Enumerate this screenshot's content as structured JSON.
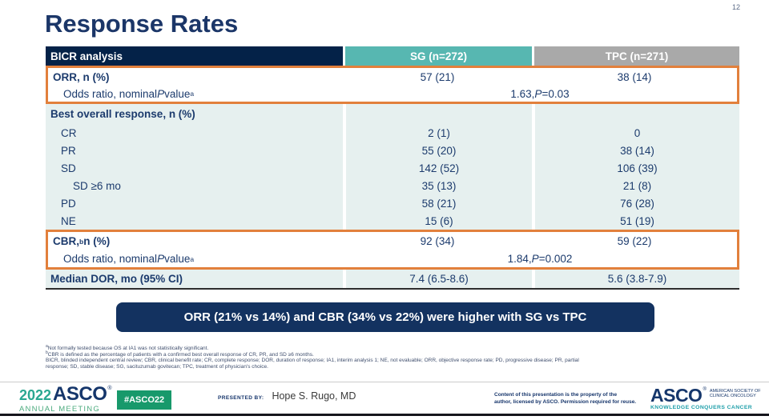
{
  "page": {
    "number": "12",
    "title": "Response Rates"
  },
  "colors": {
    "navy_header": "#042248",
    "teal_header": "#57b7b1",
    "gray_header": "#a9a9a9",
    "row_blue": "#e6f0ef",
    "orange_highlight": "#e2803c",
    "summary_navy": "#133260",
    "title_navy": "#1b3668",
    "badge_green": "#18996b",
    "tagline_teal": "#1f9faa"
  },
  "table": {
    "header": [
      "BICR analysis",
      "SG (n=272)",
      "TPC (n=271)"
    ],
    "orr": {
      "label": "ORR, n (%)",
      "sg": "57 (21)",
      "tpc": "38 (14)"
    },
    "orr_odds": {
      "label_pre": "Odds ratio, nominal ",
      "label_p": "P",
      "label_post": " value",
      "label_sup": "a",
      "value_pre": "1.63, ",
      "value_p": "P",
      "value_post": "=0.03"
    },
    "bor_label": "Best overall response, n (%)",
    "bor_rows": [
      {
        "label": "CR",
        "sg": "2 (1)",
        "tpc": "0"
      },
      {
        "label": "PR",
        "sg": "55 (20)",
        "tpc": "38 (14)"
      },
      {
        "label": "SD",
        "sg": "142 (52)",
        "tpc": "106 (39)"
      },
      {
        "label": "SD ≥6 mo",
        "sg": "35 (13)",
        "tpc": "21 (8)"
      },
      {
        "label": "PD",
        "sg": "58 (21)",
        "tpc": "76 (28)"
      },
      {
        "label": "NE",
        "sg": "15 (6)",
        "tpc": "51 (19)"
      }
    ],
    "cbr": {
      "label_pre": "CBR,",
      "label_sup": "b",
      "label_post": " n (%)",
      "sg": "92 (34)",
      "tpc": "59 (22)"
    },
    "cbr_odds": {
      "label_pre": "Odds ratio, nominal ",
      "label_p": "P",
      "label_post": " value",
      "label_sup": "a",
      "value_pre": "1.84, ",
      "value_p": "P",
      "value_post": "=0.002"
    },
    "dor": {
      "label": "Median DOR, mo (95% CI)",
      "sg": "7.4 (6.5-8.6)",
      "tpc": "5.6 (3.8-7.9)"
    }
  },
  "summary": "ORR (21% vs 14%) and CBR (34% vs 22%) were higher with SG vs TPC",
  "footnotes": [
    {
      "sup": "a",
      "text": "Not formally tested because OS at IA1 was not statistically significant."
    },
    {
      "sup": "b",
      "text": "CBR is defined as the percentage of patients with a confirmed best overall response of CR, PR, and SD ≥6 months."
    },
    {
      "sup": "",
      "text": "BICR, blinded independent central review; CBR, clinical benefit rate; CR, complete response; DOR, duration of response; IA1, interim analysis 1; NE, not evaluable; ORR, objective response rate; PD, progressive disease; PR, partial"
    },
    {
      "sup": "",
      "text": "response; SD, stable disease; SG, sacituzumab govitecan; TPC, treatment of physician's choice."
    }
  ],
  "footer": {
    "meeting_year": "2022",
    "meeting_name": "ASCO",
    "meeting_reg": "®",
    "meeting_sub": "ANNUAL MEETING",
    "hashtag": "#ASCO22",
    "presented_label": "PRESENTED BY:",
    "presenter": "Hope S. Rugo, MD",
    "copyright_line1": "Content of this presentation is the property of the",
    "copyright_line2": "author, licensed by ASCO. Permission required for reuse.",
    "logo_word": "ASCO",
    "logo_reg": "®",
    "society_line1": "AMERICAN SOCIETY OF",
    "society_line2": "CLINICAL ONCOLOGY",
    "logo_tagline": "KNOWLEDGE CONQUERS CANCER"
  }
}
